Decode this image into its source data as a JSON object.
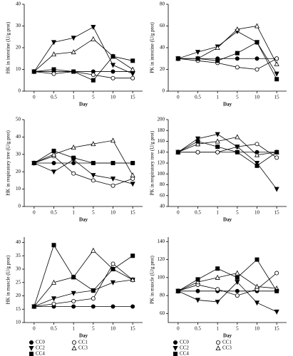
{
  "chart_data": [
    {
      "type": "line",
      "ylabel": "HK in intestine (U/g prot)",
      "xlabel": "Day",
      "categories": [
        "0",
        "0.5",
        "1",
        "5",
        "10",
        "15"
      ],
      "ylim": [
        0,
        40
      ],
      "yticks": [
        0,
        10,
        20,
        30,
        40
      ],
      "legend": false,
      "series": [
        {
          "name": "CC0",
          "color": "#000000",
          "values": [
            9,
            9,
            9,
            9,
            9,
            9
          ]
        },
        {
          "name": "CC1",
          "color": "#000000",
          "values": [
            9,
            8,
            9,
            7.5,
            6,
            6
          ]
        },
        {
          "name": "CC2",
          "color": "#000000",
          "values": [
            9,
            22.5,
            24.5,
            29.5,
            12,
            8
          ]
        },
        {
          "name": "CC3",
          "color": "#000000",
          "values": [
            9,
            17,
            18,
            24,
            16,
            10
          ]
        },
        {
          "name": "CC4",
          "color": "#000000",
          "values": [
            9,
            10,
            9,
            5,
            16,
            14
          ]
        }
      ]
    },
    {
      "type": "line",
      "ylabel": "PK in intestine (U/g prot)",
      "xlabel": "Day",
      "categories": [
        "0",
        "0.5",
        "1",
        "5",
        "10",
        "15"
      ],
      "ylim": [
        0,
        80
      ],
      "yticks": [
        0,
        20,
        40,
        60,
        80
      ],
      "legend": false,
      "series": [
        {
          "name": "CC0",
          "color": "#000000",
          "values": [
            30,
            30,
            30,
            30,
            30,
            30
          ]
        },
        {
          "name": "CC1",
          "color": "#000000",
          "values": [
            30,
            28,
            26,
            22,
            20,
            30
          ]
        },
        {
          "name": "CC2",
          "color": "#000000",
          "values": [
            30,
            36,
            41,
            55,
            45,
            16
          ]
        },
        {
          "name": "CC3",
          "color": "#000000",
          "values": [
            30,
            30,
            40,
            57,
            60,
            25
          ]
        },
        {
          "name": "CC4",
          "color": "#000000",
          "values": [
            30,
            30,
            28,
            35,
            45,
            11
          ]
        }
      ]
    },
    {
      "type": "line",
      "ylabel": "HK in respiratory tree (U/g prot)",
      "xlabel": "Day",
      "categories": [
        "0",
        "0.5",
        "1",
        "5",
        "10",
        "15"
      ],
      "ylim": [
        0,
        50
      ],
      "yticks": [
        0,
        10,
        20,
        30,
        40,
        50
      ],
      "legend": false,
      "series": [
        {
          "name": "CC0",
          "color": "#000000",
          "values": [
            25,
            25,
            25,
            25,
            25,
            25
          ]
        },
        {
          "name": "CC1",
          "color": "#000000",
          "values": [
            25,
            29,
            19,
            15,
            12,
            16
          ]
        },
        {
          "name": "CC2",
          "color": "#000000",
          "values": [
            25,
            20,
            27,
            18,
            16,
            13
          ]
        },
        {
          "name": "CC3",
          "color": "#000000",
          "values": [
            25,
            30,
            34,
            36,
            38,
            18
          ]
        },
        {
          "name": "CC4",
          "color": "#000000",
          "values": [
            25,
            32,
            28,
            25,
            25,
            25
          ]
        }
      ]
    },
    {
      "type": "line",
      "ylabel": "PK in respiratory tree (U/g prot)",
      "xlabel": "Day",
      "categories": [
        "0",
        "0.5",
        "1",
        "5",
        "10",
        "15"
      ],
      "ylim": [
        40,
        200
      ],
      "yticks": [
        40,
        60,
        80,
        100,
        120,
        140,
        160,
        180,
        200
      ],
      "legend": false,
      "series": [
        {
          "name": "CC0",
          "color": "#000000",
          "values": [
            140,
            140,
            140,
            140,
            140,
            140
          ]
        },
        {
          "name": "CC1",
          "color": "#000000",
          "values": [
            140,
            140,
            140,
            150,
            155,
            130
          ]
        },
        {
          "name": "CC2",
          "color": "#000000",
          "values": [
            140,
            165,
            173,
            150,
            120,
            72
          ]
        },
        {
          "name": "CC3",
          "color": "#000000",
          "values": [
            140,
            155,
            160,
            168,
            135,
            140
          ]
        },
        {
          "name": "CC4",
          "color": "#000000",
          "values": [
            140,
            160,
            150,
            140,
            115,
            140
          ]
        }
      ]
    },
    {
      "type": "line",
      "ylabel": "HK in muscle (U/g prot)",
      "xlabel": "Day",
      "categories": [
        "0",
        "0.5",
        "1",
        "5",
        "10",
        "15"
      ],
      "ylim": [
        10,
        42
      ],
      "yticks": [
        10,
        15,
        20,
        25,
        30,
        35,
        40
      ],
      "legend": true,
      "series": [
        {
          "name": "CC0",
          "color": "#000000",
          "values": [
            16,
            16,
            16,
            16,
            16,
            16
          ]
        },
        {
          "name": "CC1",
          "color": "#000000",
          "values": [
            16,
            17,
            18,
            19,
            32,
            26
          ]
        },
        {
          "name": "CC2",
          "color": "#000000",
          "values": [
            16,
            19,
            21,
            22,
            25,
            26
          ]
        },
        {
          "name": "CC3",
          "color": "#000000",
          "values": [
            16,
            25,
            27,
            37,
            30,
            26
          ]
        },
        {
          "name": "CC4",
          "color": "#000000",
          "values": [
            16,
            39,
            27,
            22,
            30,
            35
          ]
        }
      ]
    },
    {
      "type": "line",
      "ylabel": "PK in muscle (U/g prot)",
      "xlabel": "Day",
      "categories": [
        "0",
        "0.5",
        "1",
        "5",
        "10",
        "15"
      ],
      "ylim": [
        50,
        145
      ],
      "yticks": [
        60,
        80,
        100,
        120,
        140
      ],
      "legend": true,
      "series": [
        {
          "name": "CC0",
          "color": "#000000",
          "values": [
            85,
            85,
            85,
            85,
            85,
            85
          ]
        },
        {
          "name": "CC1",
          "color": "#000000",
          "values": [
            85,
            92,
            87,
            80,
            87,
            105
          ]
        },
        {
          "name": "CC2",
          "color": "#000000",
          "values": [
            85,
            75,
            73,
            95,
            72,
            62
          ]
        },
        {
          "name": "CC3",
          "color": "#000000",
          "values": [
            85,
            95,
            100,
            105,
            90,
            88
          ]
        },
        {
          "name": "CC4",
          "color": "#000000",
          "values": [
            85,
            98,
            110,
            100,
            120,
            85
          ]
        }
      ]
    }
  ]
}
